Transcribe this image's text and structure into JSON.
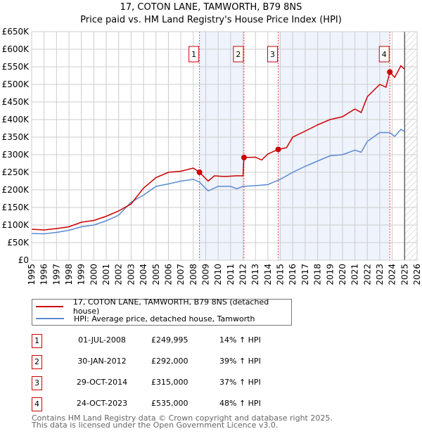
{
  "chart_data": {
    "type": "line",
    "title": "17, COTON LANE, TAMWORTH, B79 8NS",
    "subtitle": "Price paid vs. HM Land Registry's House Price Index (HPI)",
    "xlim": [
      1995,
      2026
    ],
    "ylim": [
      0,
      650000
    ],
    "x_ticks": [
      "1995",
      "1996",
      "1997",
      "1998",
      "1999",
      "2000",
      "2001",
      "2002",
      "2003",
      "2004",
      "2005",
      "2006",
      "2007",
      "2008",
      "2009",
      "2010",
      "2011",
      "2012",
      "2013",
      "2014",
      "2015",
      "2016",
      "2017",
      "2018",
      "2019",
      "2020",
      "2021",
      "2022",
      "2023",
      "2024",
      "2025",
      "2026"
    ],
    "y_ticks": [
      "£0",
      "£50K",
      "£100K",
      "£150K",
      "£200K",
      "£250K",
      "£300K",
      "£350K",
      "£400K",
      "£450K",
      "£500K",
      "£550K",
      "£600K",
      "£650K"
    ],
    "series": [
      {
        "name": "17, COTON LANE, TAMWORTH, B79 8NS (detached house)",
        "color": "#cc0000",
        "x": [
          1995,
          1996,
          1997,
          1998,
          1999,
          2000,
          2001,
          2002,
          2003,
          2004,
          2005,
          2006,
          2007,
          2008,
          2008.5,
          2009.2,
          2009.7,
          2010.5,
          2011.5,
          2012,
          2012.08,
          2013,
          2013.5,
          2014,
          2014.83,
          2015.5,
          2016,
          2017,
          2018,
          2019,
          2020,
          2021,
          2021.5,
          2022,
          2023,
          2023.5,
          2023.81,
          2024.2,
          2024.7,
          2025
        ],
        "y": [
          88000,
          86000,
          90000,
          95000,
          108000,
          113000,
          125000,
          140000,
          160000,
          205000,
          235000,
          250000,
          253000,
          262000,
          249995,
          225000,
          240000,
          238000,
          240000,
          240000,
          292000,
          293000,
          285000,
          302000,
          315000,
          320000,
          350000,
          367000,
          385000,
          400000,
          408000,
          430000,
          420000,
          465000,
          500000,
          492000,
          535000,
          520000,
          553000,
          543000
        ]
      },
      {
        "name": "HPI: Average price, detached house, Tamworth",
        "color": "#5b8bd0",
        "x": [
          1995,
          1996,
          1997,
          1998,
          1999,
          2000,
          2001,
          2002,
          2003,
          2004,
          2005,
          2006,
          2007,
          2008,
          2008.5,
          2009.2,
          2010,
          2011,
          2011.5,
          2012,
          2013,
          2014,
          2015,
          2016,
          2017,
          2018,
          2019,
          2020,
          2021,
          2021.5,
          2022,
          2023,
          2023.8,
          2024.2,
          2024.7,
          2025
        ],
        "y": [
          76000,
          75000,
          79000,
          85000,
          95000,
          100000,
          112000,
          128000,
          165000,
          185000,
          210000,
          217000,
          225000,
          230000,
          222000,
          197000,
          210000,
          210000,
          203000,
          210000,
          212000,
          215000,
          230000,
          250000,
          267000,
          282000,
          297000,
          300000,
          313000,
          307000,
          338000,
          363000,
          363000,
          352000,
          372000,
          366000
        ]
      }
    ],
    "sales": [
      {
        "label": "1",
        "x": 2008.5,
        "y": 249995,
        "date": "01-JUL-2008",
        "price": "£249,995",
        "hpi": "14% ↑ HPI"
      },
      {
        "label": "2",
        "x": 2012.08,
        "y": 292000,
        "date": "30-JAN-2012",
        "price": "£292,000",
        "hpi": "39% ↑ HPI"
      },
      {
        "label": "3",
        "x": 2014.83,
        "y": 315000,
        "date": "29-OCT-2014",
        "price": "£315,000",
        "hpi": "37% ↑ HPI"
      },
      {
        "label": "4",
        "x": 2023.81,
        "y": 535000,
        "date": "24-OCT-2023",
        "price": "£535,000",
        "hpi": "48% ↑ HPI"
      }
    ],
    "data_end": 2025
  },
  "footer": {
    "line1": "Contains HM Land Registry data © Crown copyright and database right 2025.",
    "line2": "This data is licensed under the Open Government Licence v3.0."
  }
}
